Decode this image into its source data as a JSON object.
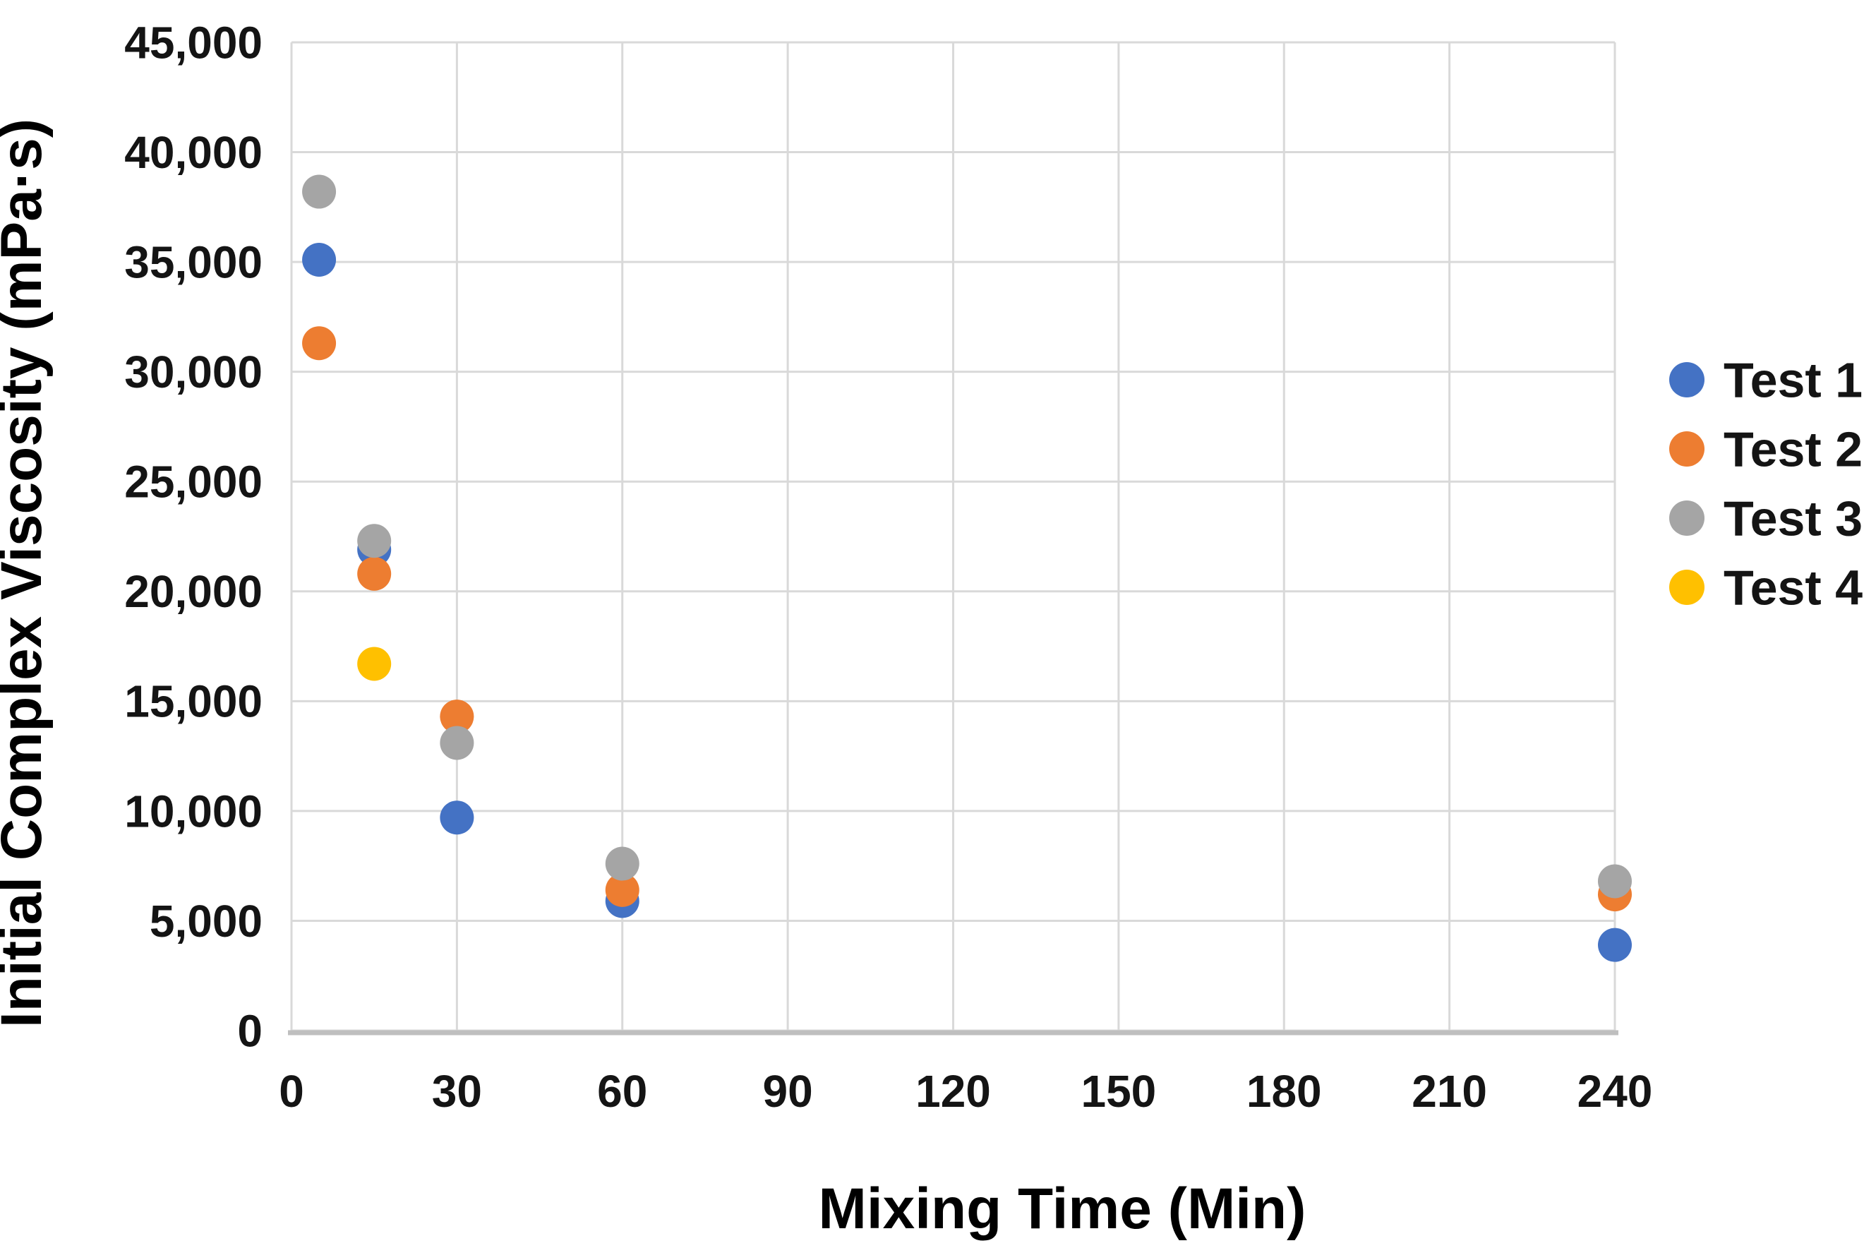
{
  "figure": {
    "background": "#ffffff"
  },
  "chart_data": {
    "type": "scatter",
    "title": "",
    "xlabel": "Mixing Time (Min)",
    "ylabel": "Initial Complex Viscosity (mPa·s)",
    "xlim": [
      0,
      240
    ],
    "ylim": [
      0,
      45000
    ],
    "x_tick_interval": 30,
    "y_tick_interval": 5000,
    "x_tick_labels": [
      "0",
      "30",
      "60",
      "90",
      "120",
      "150",
      "180",
      "210",
      "240"
    ],
    "y_tick_labels": [
      "0",
      "5,000",
      "10,000",
      "15,000",
      "20,000",
      "25,000",
      "30,000",
      "35,000",
      "40,000",
      "45,000"
    ],
    "grid": true,
    "legend_position": "right",
    "gridline_color": "#D9D9D9",
    "axis_line_color": "#BFBFBF",
    "tick_label_color": "#141414",
    "series": [
      {
        "name": "Test 1",
        "color": "#4472C4",
        "points": [
          [
            5,
            35100
          ],
          [
            15,
            21900
          ],
          [
            30,
            9700
          ],
          [
            60,
            5900
          ],
          [
            240,
            3900
          ]
        ]
      },
      {
        "name": "Test 2",
        "color": "#ED7D31",
        "points": [
          [
            5,
            31300
          ],
          [
            15,
            20800
          ],
          [
            30,
            14300
          ],
          [
            60,
            6400
          ],
          [
            240,
            6200
          ]
        ]
      },
      {
        "name": "Test 3",
        "color": "#A5A5A5",
        "points": [
          [
            5,
            38200
          ],
          [
            15,
            22300
          ],
          [
            30,
            13100
          ],
          [
            60,
            7600
          ],
          [
            240,
            6800
          ]
        ]
      },
      {
        "name": "Test 4",
        "color": "#FFC000",
        "points": [
          [
            15,
            16700
          ]
        ]
      }
    ]
  }
}
